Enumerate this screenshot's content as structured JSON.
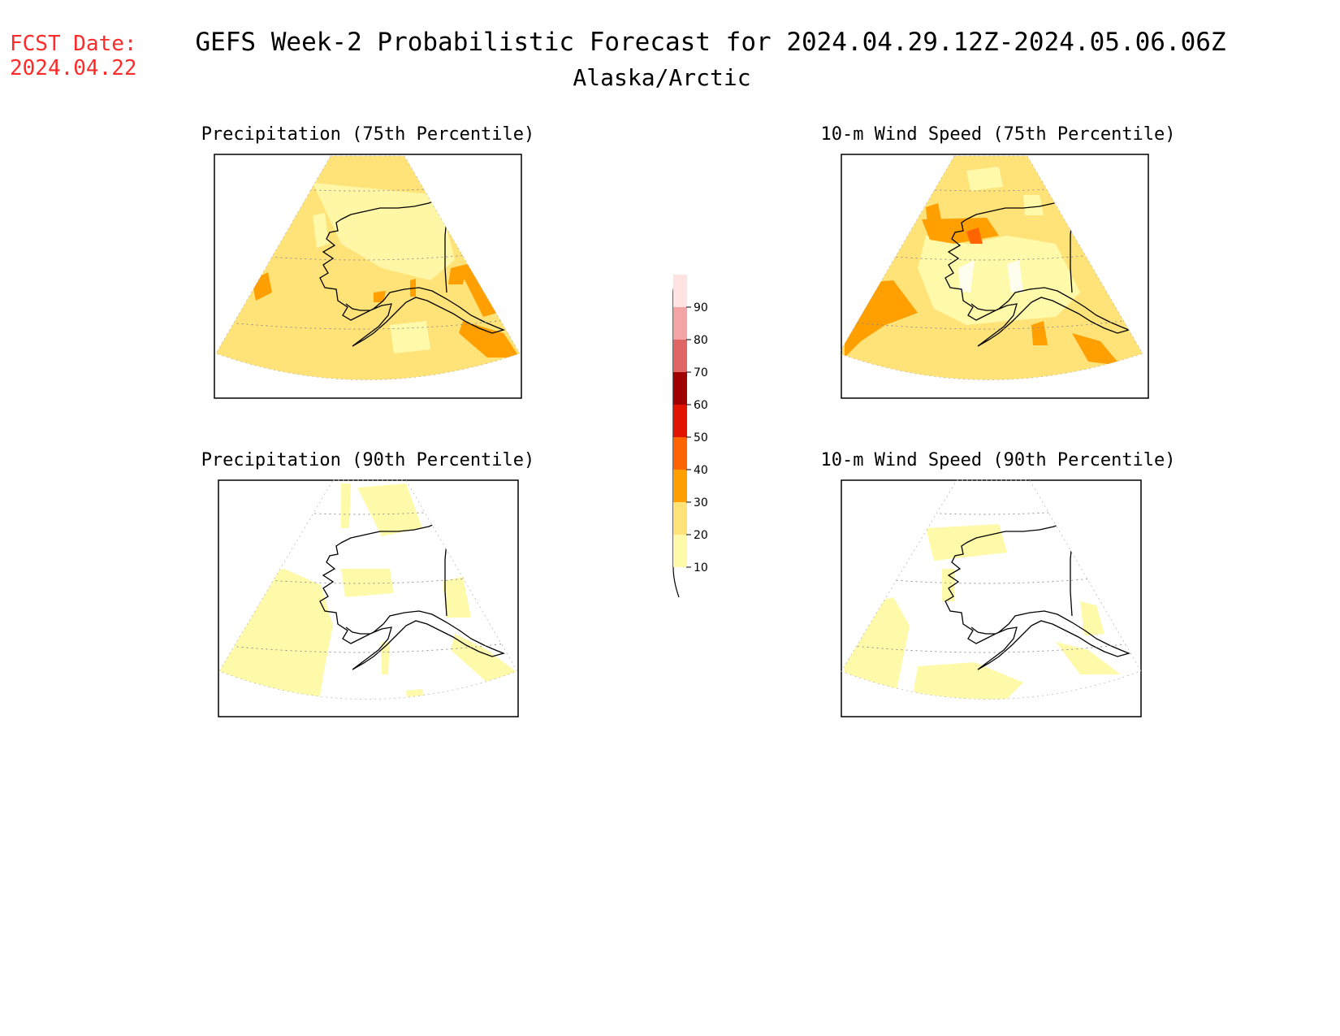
{
  "fcst": {
    "label": "FCST Date:",
    "date": "2024.04.22",
    "color": "#ff2a2a"
  },
  "title": "GEFS Week-2 Probabilistic Forecast for 2024.04.29.12Z-2024.05.06.06Z",
  "region": "Alaska/Arctic",
  "panels": [
    {
      "title": "Precipitation (75th Percentile)",
      "level": "high"
    },
    {
      "title": "10-m Wind Speed (75th Percentile)",
      "level": "high"
    },
    {
      "title": "Precipitation (90th Percentile)",
      "level": "low"
    },
    {
      "title": "10-m Wind Speed (90th Percentile)",
      "level": "low"
    }
  ],
  "colorbar": {
    "levels": [
      "10",
      "20",
      "30",
      "40",
      "50",
      "60",
      "70",
      "80",
      "90"
    ],
    "colors": [
      "#ffffff",
      "#fffaaa",
      "#ffe278",
      "#ffa000",
      "#ff6400",
      "#e21400",
      "#a00000",
      "#e06666",
      "#f3a4a4",
      "#ffe2e2"
    ]
  }
}
